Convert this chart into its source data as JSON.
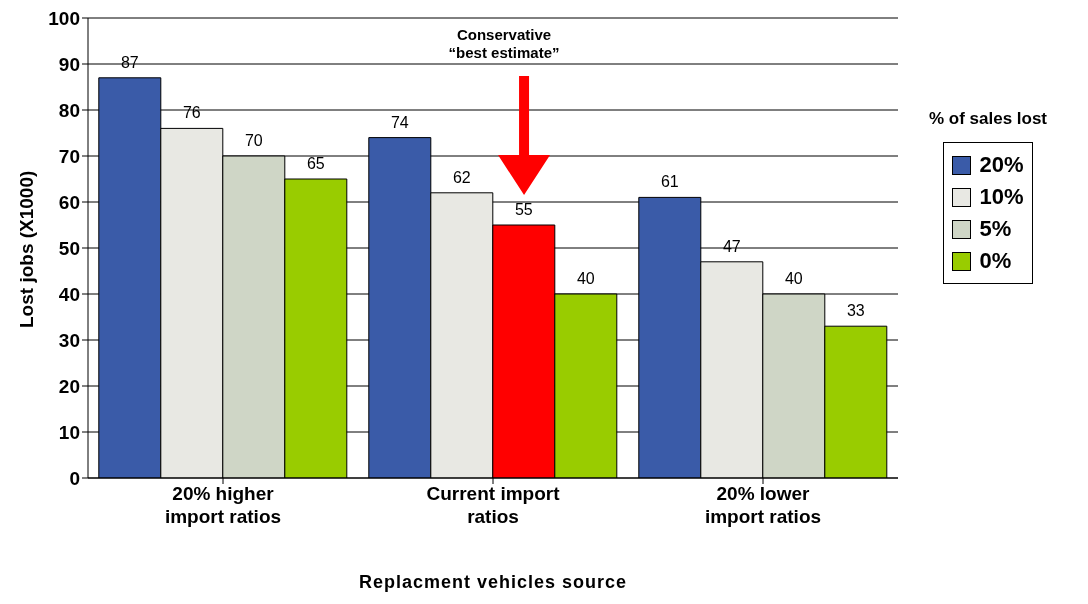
{
  "chart_data": {
    "type": "bar",
    "xlabel": "Replacment vehicles source",
    "ylabel": "Lost jobs (X1000)",
    "legend_title": "% of sales lost",
    "categories": [
      "20% higher import ratios",
      "Current import ratios",
      "20% lower import ratios"
    ],
    "series": [
      {
        "name": "20%",
        "color": "#3a5ba8",
        "values": [
          87,
          74,
          61
        ]
      },
      {
        "name": "10%",
        "color": "#e8e8e3",
        "values": [
          76,
          62,
          47
        ]
      },
      {
        "name": "5%",
        "color": "#cfd6c6",
        "colors": [
          "#cfd6c6",
          "#ff0000",
          "#cfd6c6"
        ],
        "values": [
          70,
          55,
          40
        ]
      },
      {
        "name": "0%",
        "color": "#99cc00",
        "values": [
          65,
          40,
          33
        ]
      }
    ],
    "ylim": [
      0,
      100
    ],
    "yticks": [
      0,
      10,
      20,
      30,
      40,
      50,
      60,
      70,
      80,
      90,
      100
    ],
    "grid": "y",
    "legend": "right",
    "data_labels": true,
    "annotations": [
      "Conservative\n“best estimate”"
    ]
  }
}
